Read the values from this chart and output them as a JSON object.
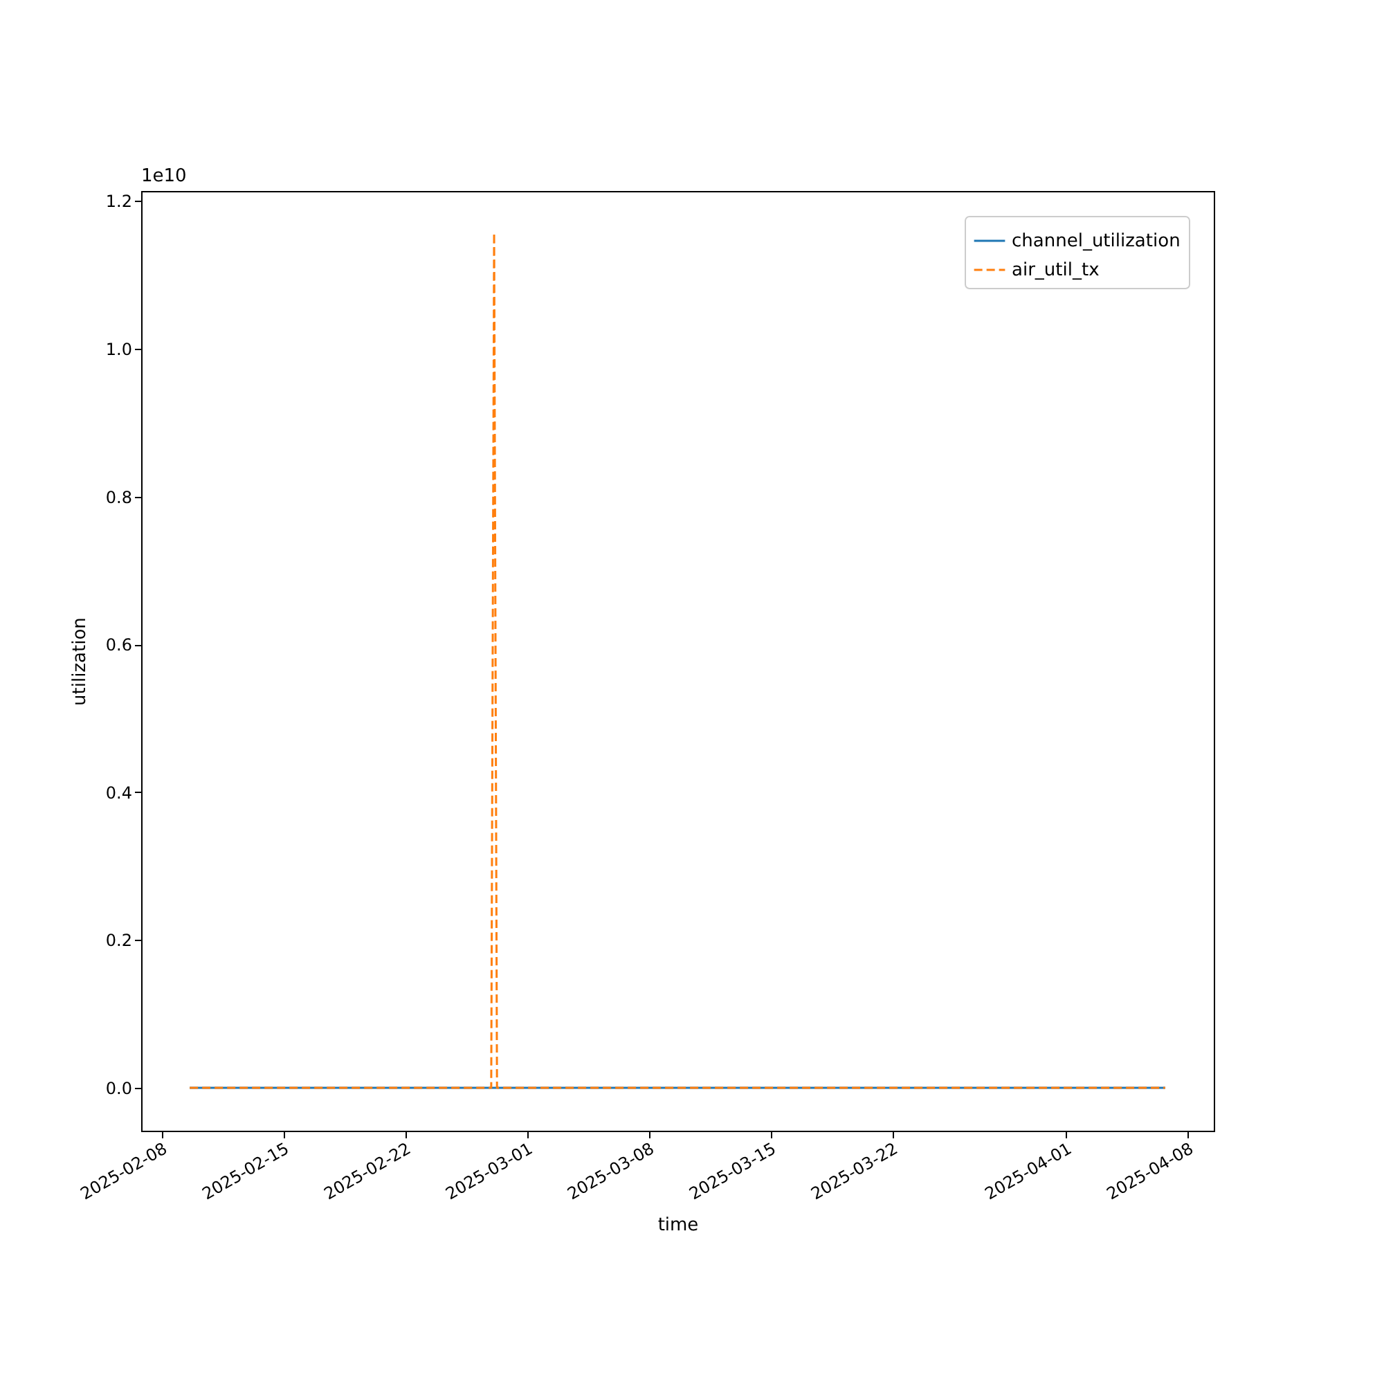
{
  "chart_data": {
    "type": "line",
    "xlabel": "time",
    "ylabel": "utilization",
    "annotations": [
      "1e10"
    ],
    "xlim": [
      "2025-02-06T20:00",
      "2025-04-09T12:00"
    ],
    "xticks": [
      "2025-02-08",
      "2025-02-15",
      "2025-02-22",
      "2025-03-01",
      "2025-03-08",
      "2025-03-15",
      "2025-03-22",
      "2025-04-01",
      "2025-04-08"
    ],
    "ylim": [
      -0.058,
      1.2135
    ],
    "yticks": [
      {
        "value": 0,
        "label": "0.0"
      },
      0.2,
      0.4,
      0.6,
      0.8,
      {
        "value": 1,
        "label": "1.0"
      },
      1.2
    ],
    "legend": "top right",
    "grid": false,
    "series": [
      {
        "name": "channel_utilization",
        "color": "#1f77b4",
        "line_style": "solid",
        "x": [
          "2025-02-09T15:00",
          "2025-04-06T17:00"
        ],
        "values": [
          0,
          0
        ]
      },
      {
        "name": "air_util_tx",
        "color": "#ff7f0e",
        "line_style": "dashed",
        "x": [
          "2025-02-09T15:00",
          "2025-02-26T23:00",
          "2025-02-27T03:00",
          "2025-02-27T07:00",
          "2025-04-06T17:00"
        ],
        "values": [
          0,
          0,
          1.157,
          0,
          0
        ]
      }
    ]
  }
}
